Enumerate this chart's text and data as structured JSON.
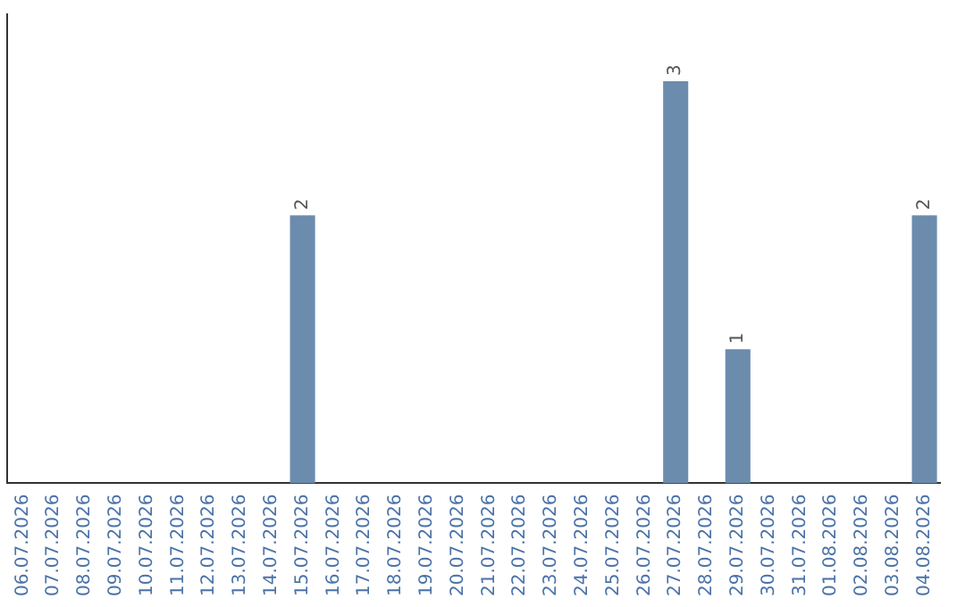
{
  "chart_data": {
    "type": "bar",
    "categories": [
      "06.07.2026",
      "07.07.2026",
      "08.07.2026",
      "09.07.2026",
      "10.07.2026",
      "11.07.2026",
      "12.07.2026",
      "13.07.2026",
      "14.07.2026",
      "15.07.2026",
      "16.07.2026",
      "17.07.2026",
      "18.07.2026",
      "19.07.2026",
      "20.07.2026",
      "21.07.2026",
      "22.07.2026",
      "23.07.2026",
      "24.07.2026",
      "25.07.2026",
      "26.07.2026",
      "27.07.2026",
      "28.07.2026",
      "29.07.2026",
      "30.07.2026",
      "31.07.2026",
      "01.08.2026",
      "02.08.2026",
      "03.08.2026",
      "04.08.2026"
    ],
    "values": [
      0,
      0,
      0,
      0,
      0,
      0,
      0,
      0,
      0,
      2,
      0,
      0,
      0,
      0,
      0,
      0,
      0,
      0,
      0,
      0,
      0,
      3,
      0,
      1,
      0,
      0,
      0,
      0,
      0,
      2
    ],
    "value_labels": [
      null,
      null,
      null,
      null,
      null,
      null,
      null,
      null,
      null,
      "2",
      null,
      null,
      null,
      null,
      null,
      null,
      null,
      null,
      null,
      null,
      null,
      "3",
      null,
      "1",
      null,
      null,
      null,
      null,
      null,
      "2"
    ],
    "color": "#6b8cad",
    "grid": false,
    "legend": false
  }
}
